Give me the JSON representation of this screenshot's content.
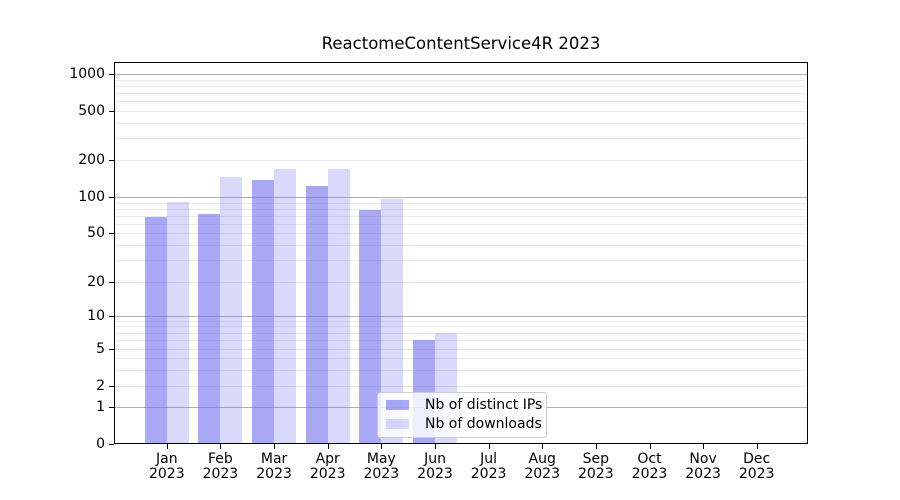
{
  "chart_data": {
    "type": "bar",
    "title": "ReactomeContentService4R 2023",
    "categories": [
      {
        "month": "Jan",
        "year": "2023"
      },
      {
        "month": "Feb",
        "year": "2023"
      },
      {
        "month": "Mar",
        "year": "2023"
      },
      {
        "month": "Apr",
        "year": "2023"
      },
      {
        "month": "May",
        "year": "2023"
      },
      {
        "month": "Jun",
        "year": "2023"
      },
      {
        "month": "Jul",
        "year": "2023"
      },
      {
        "month": "Aug",
        "year": "2023"
      },
      {
        "month": "Sep",
        "year": "2023"
      },
      {
        "month": "Oct",
        "year": "2023"
      },
      {
        "month": "Nov",
        "year": "2023"
      },
      {
        "month": "Dec",
        "year": "2023"
      }
    ],
    "series": [
      {
        "name": "Nb of distinct IPs",
        "color": "#6666ee",
        "alpha": 0.57,
        "values": [
          68,
          72,
          138,
          124,
          78,
          6,
          0,
          0,
          0,
          0,
          0,
          0
        ]
      },
      {
        "name": "Nb of downloads",
        "color": "#6666ee",
        "alpha": 0.25,
        "values": [
          91,
          145,
          168,
          168,
          96,
          7,
          0,
          0,
          0,
          0,
          0,
          0
        ]
      }
    ],
    "yscale": "symlog",
    "yticks": [
      0,
      1,
      2,
      5,
      10,
      20,
      50,
      100,
      200,
      500,
      1000
    ],
    "ylim": [
      0,
      1250
    ],
    "xlabel": "",
    "ylabel": "",
    "grid": "horizontal major and log-minor gridlines",
    "legend_position": "lower center",
    "colors": {
      "grid_major": "#b2b2b2",
      "grid_minor": "#e9e9ef",
      "axis": "#000000",
      "text": "#000000",
      "background": "#ffffff"
    }
  }
}
